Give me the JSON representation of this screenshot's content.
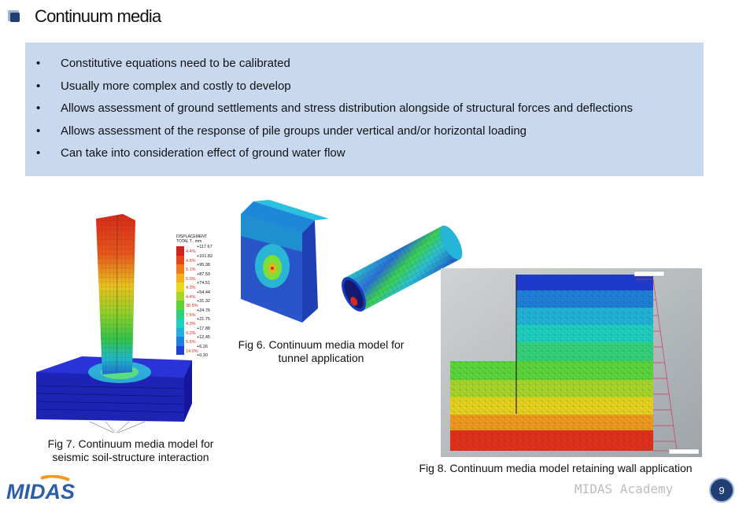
{
  "page": {
    "title": "Continuum media",
    "page_number": "9",
    "footer_brand": "MIDAS Academy",
    "logo_text": "MIDAS"
  },
  "bullets": [
    {
      "marker": "•",
      "text": "Constitutive equations need to be calibrated"
    },
    {
      "marker": "•",
      "text": "Usually more complex and costly to develop"
    },
    {
      "marker": "•",
      "text": "Allows assessment of ground settlements and stress distribution alongside of structural forces and deflections"
    },
    {
      "marker": "•",
      "text": "Allows assessment of the response of pile groups under vertical and/or horizontal loading"
    },
    {
      "marker": "•",
      "text": "Can take into consideration effect of ground water flow"
    }
  ],
  "figures": {
    "fig6": {
      "caption_line1": "Fig 6. Continuum media model for",
      "caption_line2": "tunnel application"
    },
    "fig7": {
      "caption_line1": "Fig 7. Continuum media model for",
      "caption_line2": "seismic soil-structure interaction",
      "legend_title_line1": "DISPLACEMENT",
      "legend_title_line2": "TOTAL T , mm",
      "legend_values": [
        "+117.67",
        "+101.82",
        "+95.38",
        "+87.59",
        "+74.51",
        "+54.44",
        "+31.32",
        "+24.76",
        "+21.75",
        "+17.88",
        "+12.45",
        "+6.26",
        "+0.30"
      ],
      "legend_percents": [
        "4.4%",
        "4.6%",
        "5.1%",
        "5.0%",
        "4.3%",
        "4.4%",
        "30.5%",
        "7.6%",
        "4.3%",
        "9.2%",
        "5.6%",
        "14.0%"
      ]
    },
    "fig8": {
      "caption": "Fig 8. Continuum media model retaining wall application"
    }
  },
  "colors": {
    "bullet_bg": "#c8d8ee",
    "badge_bg": "#1f3e74",
    "logo_blue": "#2b5ea8",
    "logo_orange": "#f39a1e"
  }
}
